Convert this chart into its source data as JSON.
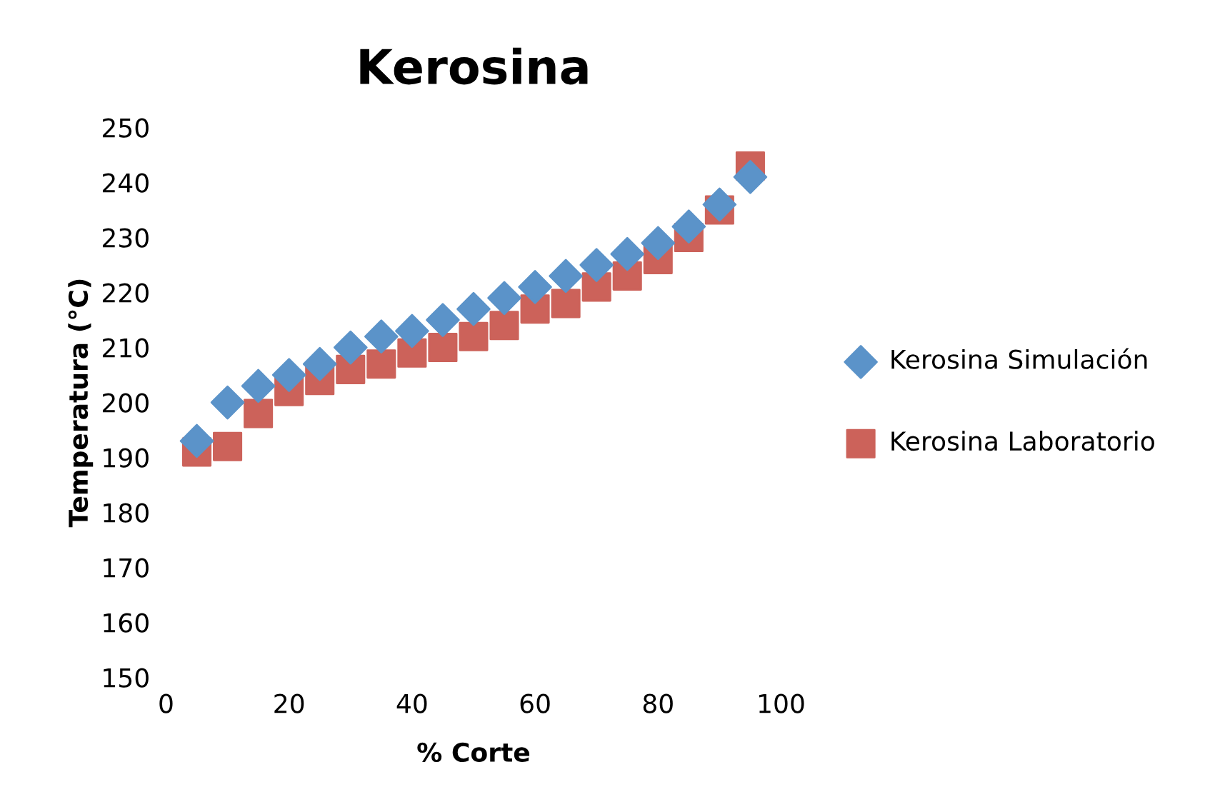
{
  "chart_data": {
    "type": "scatter",
    "title": "Kerosina",
    "xlabel": "% Corte",
    "ylabel": "Temperatura (°C)",
    "x": [
      5,
      10,
      15,
      20,
      25,
      30,
      35,
      40,
      45,
      50,
      55,
      60,
      65,
      70,
      75,
      80,
      85,
      90,
      95
    ],
    "series": [
      {
        "name": "Kerosina Simulación",
        "color": "#5b93c9",
        "marker": "diamond",
        "values": [
          193,
          200,
          203,
          205,
          207,
          210,
          212,
          213,
          215,
          217,
          219,
          221,
          223,
          225,
          227,
          229,
          232,
          236,
          241
        ]
      },
      {
        "name": "Kerosina Laboratorio",
        "color": "#cc625a",
        "marker": "square",
        "values": [
          191,
          192,
          198,
          202,
          204,
          206,
          207,
          209,
          210,
          212,
          214,
          217,
          218,
          221,
          223,
          226,
          230,
          235,
          243
        ]
      }
    ],
    "xlim": [
      0,
      100
    ],
    "xticks": [
      0,
      20,
      40,
      60,
      80,
      100
    ],
    "ylim": [
      150,
      250
    ],
    "yticks": [
      150,
      160,
      170,
      180,
      190,
      200,
      210,
      220,
      230,
      240,
      250
    ],
    "grid": false,
    "legend": "right"
  }
}
